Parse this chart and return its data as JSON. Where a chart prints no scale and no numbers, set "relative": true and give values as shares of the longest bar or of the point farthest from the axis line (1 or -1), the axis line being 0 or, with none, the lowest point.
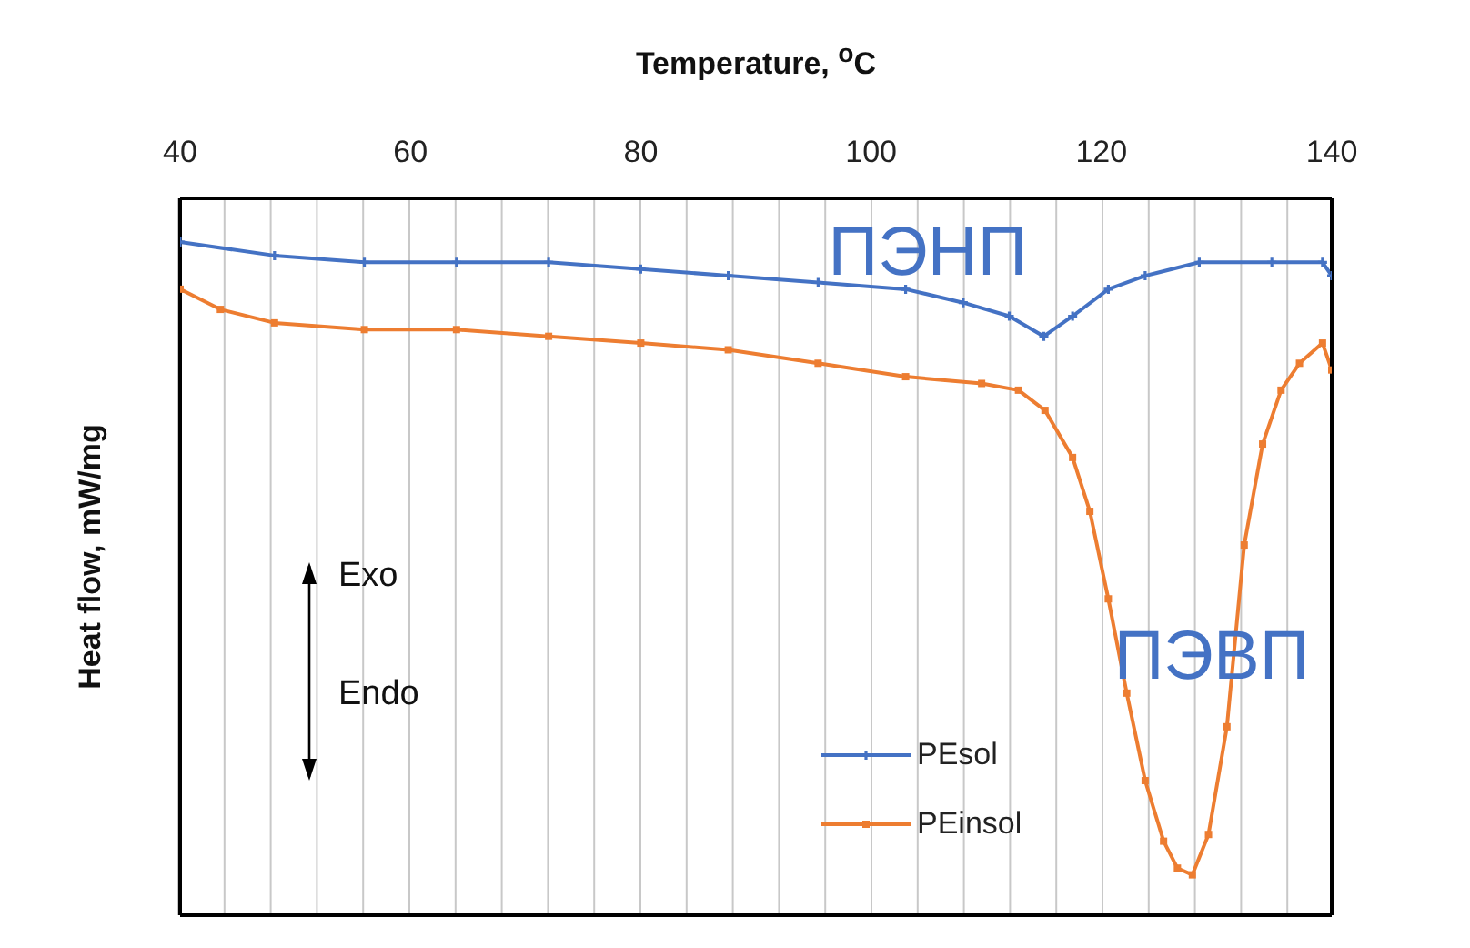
{
  "chart_data": {
    "type": "line",
    "title": "Temperature, $^{o}$C",
    "ylabel": "Heat flow, mW/mg",
    "relative": true,
    "xlim": [
      40,
      140
    ],
    "xticks": [
      40,
      {
        "value": 44,
        "label": null
      },
      {
        "value": 48,
        "label": null
      },
      {
        "value": 52,
        "label": null
      },
      {
        "value": 56,
        "label": null
      },
      60,
      {
        "value": 64,
        "label": null
      },
      {
        "value": 68,
        "label": null
      },
      {
        "value": 72,
        "label": null
      },
      {
        "value": 76,
        "label": null
      },
      80,
      {
        "value": 84,
        "label": null
      },
      {
        "value": 88,
        "label": null
      },
      {
        "value": 92,
        "label": null
      },
      {
        "value": 96,
        "label": null
      },
      100,
      {
        "value": 104,
        "label": null
      },
      {
        "value": 108,
        "label": null
      },
      {
        "value": 112,
        "label": null
      },
      {
        "value": 116,
        "label": null
      },
      120,
      {
        "value": 124,
        "label": null
      },
      {
        "value": 128,
        "label": null
      },
      {
        "value": 132,
        "label": null
      },
      {
        "value": 136,
        "label": null
      },
      140
    ],
    "grid": "x",
    "legend": "bottom right",
    "series": [
      {
        "name": "PEsol",
        "color": "#4472c4",
        "marker": "cross",
        "x": [
          40,
          48.2,
          56,
          64,
          72,
          80,
          87.6,
          95.4,
          103,
          108,
          112,
          115,
          117.5,
          120.6,
          123.8,
          128.5,
          134.8,
          139.2,
          140
        ],
        "values": [
          1.0,
          0.98,
          0.97,
          0.97,
          0.97,
          0.96,
          0.95,
          0.94,
          0.93,
          0.91,
          0.89,
          0.86,
          0.89,
          0.93,
          0.95,
          0.97,
          0.97,
          0.97,
          0.95
        ]
      },
      {
        "name": "PEinsol",
        "color": "#ed7d31",
        "marker": "square",
        "x": [
          40,
          43.5,
          48.2,
          56,
          64,
          72,
          80,
          87.6,
          95.4,
          103,
          109.6,
          112.8,
          115.1,
          117.5,
          119,
          120.6,
          122.2,
          123.8,
          125.4,
          126.6,
          127.9,
          129.3,
          130.9,
          132.4,
          134,
          135.6,
          137.2,
          139.2,
          140
        ],
        "values": [
          0.93,
          0.9,
          0.88,
          0.87,
          0.87,
          0.86,
          0.85,
          0.84,
          0.82,
          0.8,
          0.79,
          0.78,
          0.75,
          0.68,
          0.6,
          0.47,
          0.33,
          0.2,
          0.11,
          0.07,
          0.06,
          0.12,
          0.28,
          0.55,
          0.7,
          0.78,
          0.82,
          0.85,
          0.81
        ]
      }
    ],
    "annotations": [
      "ПЭНП",
      "ПЭВП",
      "Exo",
      "Endo"
    ]
  }
}
